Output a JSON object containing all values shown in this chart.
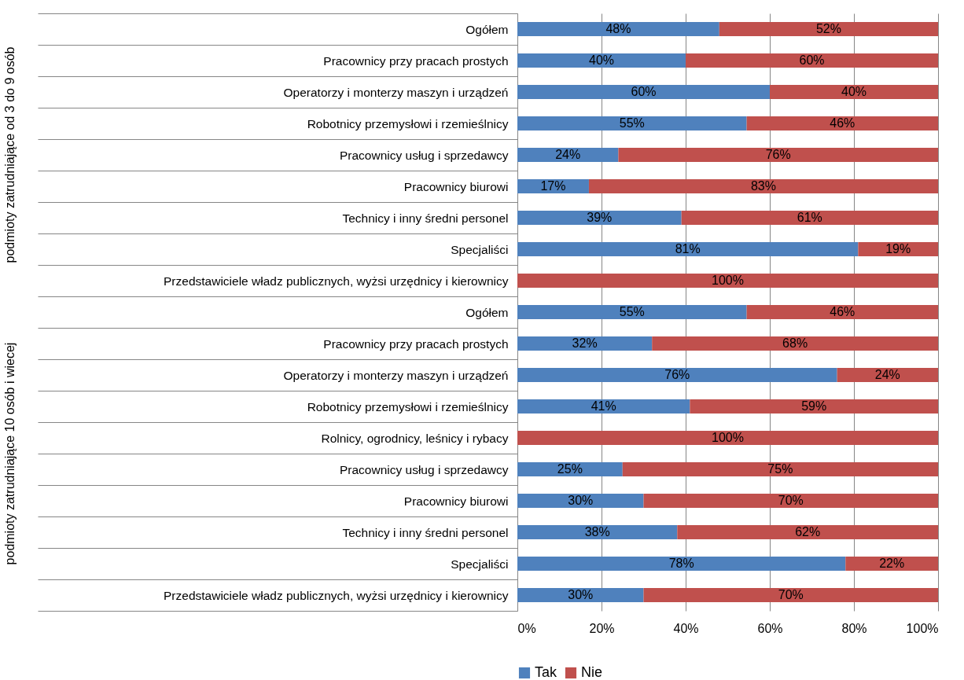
{
  "chart_data": {
    "type": "bar",
    "orientation": "horizontal",
    "stacked": true,
    "categories": [
      "Ogółem",
      "Pracownicy przy pracach prostych",
      "Operatorzy i monterzy maszyn i urządzeń",
      "Robotnicy przemysłowi i rzemieślnicy",
      "Pracownicy usług i sprzedawcy",
      "Pracownicy biurowi",
      "Technicy i inny średni personel",
      "Specjaliści",
      "Przedstawiciele władz publicznych, wyżsi urzędnicy i kierownicy",
      "Ogółem",
      "Pracownicy przy pracach prostych",
      "Operatorzy i monterzy maszyn i urządzeń",
      "Robotnicy przemysłowi i rzemieślnicy",
      "Rolnicy, ogrodnicy, leśnicy i rybacy",
      "Pracownicy usług i sprzedawcy",
      "Pracownicy biurowi",
      "Technicy i inny średni personel",
      "Specjaliści",
      "Przedstawiciele władz publicznych, wyżsi urzędnicy i kierownicy"
    ],
    "series": [
      {
        "name": "Tak",
        "color": "#4f81bd",
        "values": [
          48,
          40,
          60,
          54.5,
          24,
          17,
          39,
          81,
          0,
          54.5,
          32,
          76,
          41,
          0,
          25,
          30,
          38,
          78,
          30
        ],
        "value_labels": [
          "48%",
          "40%",
          "60%",
          "55%",
          "24%",
          "17%",
          "39%",
          "81%",
          null,
          "55%",
          "32%",
          "76%",
          "41%",
          null,
          "25%",
          "30%",
          "38%",
          "78%",
          "30%"
        ]
      },
      {
        "name": "Nie",
        "color": "#c0504d",
        "values": [
          52,
          60,
          40,
          45.5,
          76,
          83,
          61,
          19,
          100,
          45.5,
          68,
          24,
          59,
          100,
          75,
          70,
          62,
          22,
          70
        ],
        "value_labels": [
          "52%",
          "60%",
          "40%",
          "46%",
          "76%",
          "83%",
          "61%",
          "19%",
          "100%",
          "46%",
          "68%",
          "24%",
          "59%",
          "100%",
          "75%",
          "70%",
          "62%",
          "22%",
          "70%"
        ]
      }
    ],
    "xlim": [
      0,
      100
    ],
    "xticks": [
      {
        "value": 0,
        "label": "0%"
      },
      {
        "value": 20,
        "label": "20%"
      },
      {
        "value": 40,
        "label": "40%"
      },
      {
        "value": 60,
        "label": "60%"
      },
      {
        "value": 80,
        "label": "80%"
      },
      {
        "value": 100,
        "label": "100%"
      }
    ],
    "grid": "x",
    "legend": "bottom",
    "annotations": [
      "podmioty zatrudniające od 3 do 9 osób",
      "podmioty zatrudniające 10 osób i wiecej"
    ]
  }
}
